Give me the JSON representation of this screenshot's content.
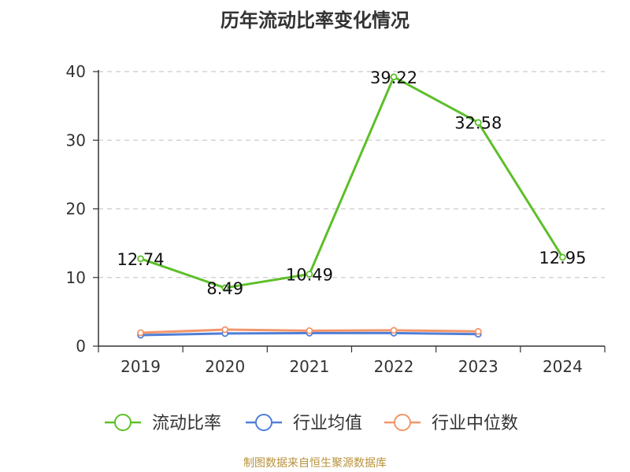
{
  "colors": {
    "axis": "#333333",
    "grid": "#cccccc",
    "source": "#b8923b"
  },
  "chart_data": {
    "type": "line",
    "title": "历年流动比率变化情况",
    "categories": [
      "2019",
      "2020",
      "2021",
      "2022",
      "2023",
      "2024"
    ],
    "ylim": [
      0,
      40
    ],
    "yticks": [
      0,
      10,
      20,
      30,
      40
    ],
    "grid": "horizontal-dashed",
    "legend_position": "bottom",
    "series": [
      {
        "name": "流动比率",
        "color": "#5dbf29",
        "values": [
          12.74,
          8.49,
          10.49,
          39.22,
          32.58,
          12.95
        ],
        "labels": [
          "12.74",
          "8.49",
          "10.49",
          "39.22",
          "32.58",
          "12.95"
        ]
      },
      {
        "name": "行业均值",
        "color": "#4f7fd8",
        "values": [
          1.6,
          1.85,
          1.9,
          1.9,
          1.75,
          null
        ]
      },
      {
        "name": "行业中位数",
        "color": "#f2966a",
        "values": [
          1.95,
          2.4,
          2.25,
          2.3,
          2.15,
          null
        ]
      }
    ]
  },
  "footer": {
    "source_text": "制图数据来自恒生聚源数据库"
  }
}
